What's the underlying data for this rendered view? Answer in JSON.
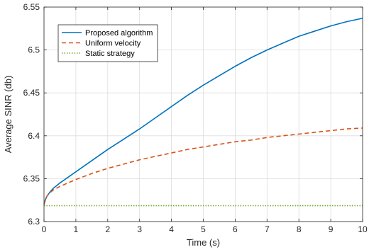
{
  "chart_data": {
    "type": "line",
    "xlabel": "Time (s)",
    "ylabel": "Average SINR (db)",
    "xlim": [
      0,
      10
    ],
    "ylim": [
      6.3,
      6.55
    ],
    "xticks": [
      "0",
      "1",
      "2",
      "3",
      "4",
      "5",
      "6",
      "7",
      "8",
      "9",
      "10"
    ],
    "yticks": [
      "6.3",
      "6.35",
      "6.4",
      "6.45",
      "6.5",
      "6.55"
    ],
    "grid": true,
    "legend_position": "top-left",
    "series": [
      {
        "name": "Proposed algorithm",
        "color": "#0072BD",
        "style": "solid",
        "x": [
          0,
          0.05,
          0.1,
          0.2,
          0.3,
          0.5,
          1,
          1.5,
          2,
          2.5,
          3,
          3.5,
          4,
          4.5,
          5,
          5.5,
          6,
          6.5,
          7,
          7.5,
          8,
          8.5,
          9,
          9.5,
          10
        ],
        "y": [
          6.32,
          6.326,
          6.33,
          6.335,
          6.339,
          6.345,
          6.358,
          6.371,
          6.384,
          6.396,
          6.408,
          6.421,
          6.434,
          6.447,
          6.459,
          6.47,
          6.481,
          6.491,
          6.5,
          6.508,
          6.516,
          6.522,
          6.528,
          6.533,
          6.537
        ]
      },
      {
        "name": "Uniform velocity",
        "color": "#D95319",
        "style": "dashed",
        "x": [
          0,
          0.05,
          0.1,
          0.2,
          0.3,
          0.5,
          1,
          1.5,
          2,
          2.5,
          3,
          3.5,
          4,
          4.5,
          5,
          5.5,
          6,
          6.5,
          7,
          7.5,
          8,
          8.5,
          9,
          9.5,
          10
        ],
        "y": [
          6.32,
          6.327,
          6.33,
          6.334,
          6.337,
          6.341,
          6.349,
          6.356,
          6.362,
          6.367,
          6.372,
          6.376,
          6.38,
          6.384,
          6.387,
          6.39,
          6.393,
          6.395,
          6.398,
          6.4,
          6.402,
          6.404,
          6.406,
          6.408,
          6.409
        ]
      },
      {
        "name": "Static strategy",
        "color": "#77AC30",
        "style": "dotted",
        "x": [
          0,
          10
        ],
        "y": [
          6.3185,
          6.3185
        ]
      }
    ]
  }
}
